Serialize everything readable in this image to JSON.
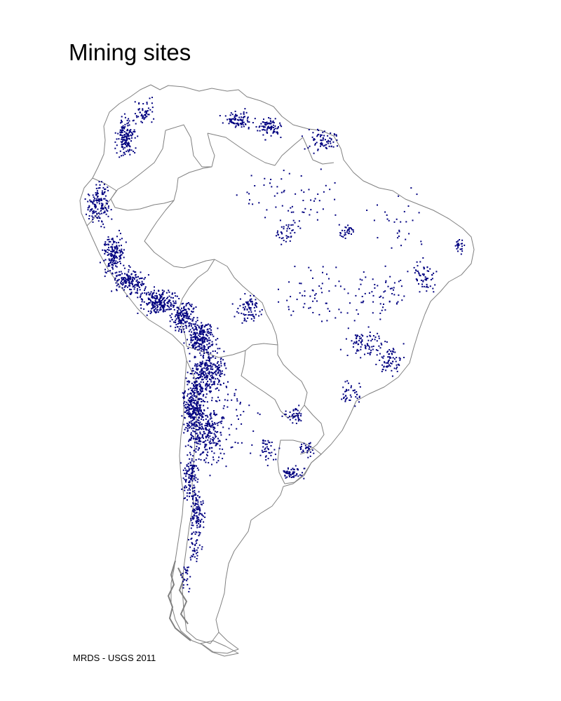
{
  "title": "Mining sites",
  "credit": "MRDS - USGS 2011",
  "colors": {
    "site_marker": "#000080",
    "border": "#808080",
    "background": "#ffffff"
  },
  "map": {
    "region": "South America",
    "features": [
      "country-borders",
      "mining-site-markers"
    ]
  }
}
